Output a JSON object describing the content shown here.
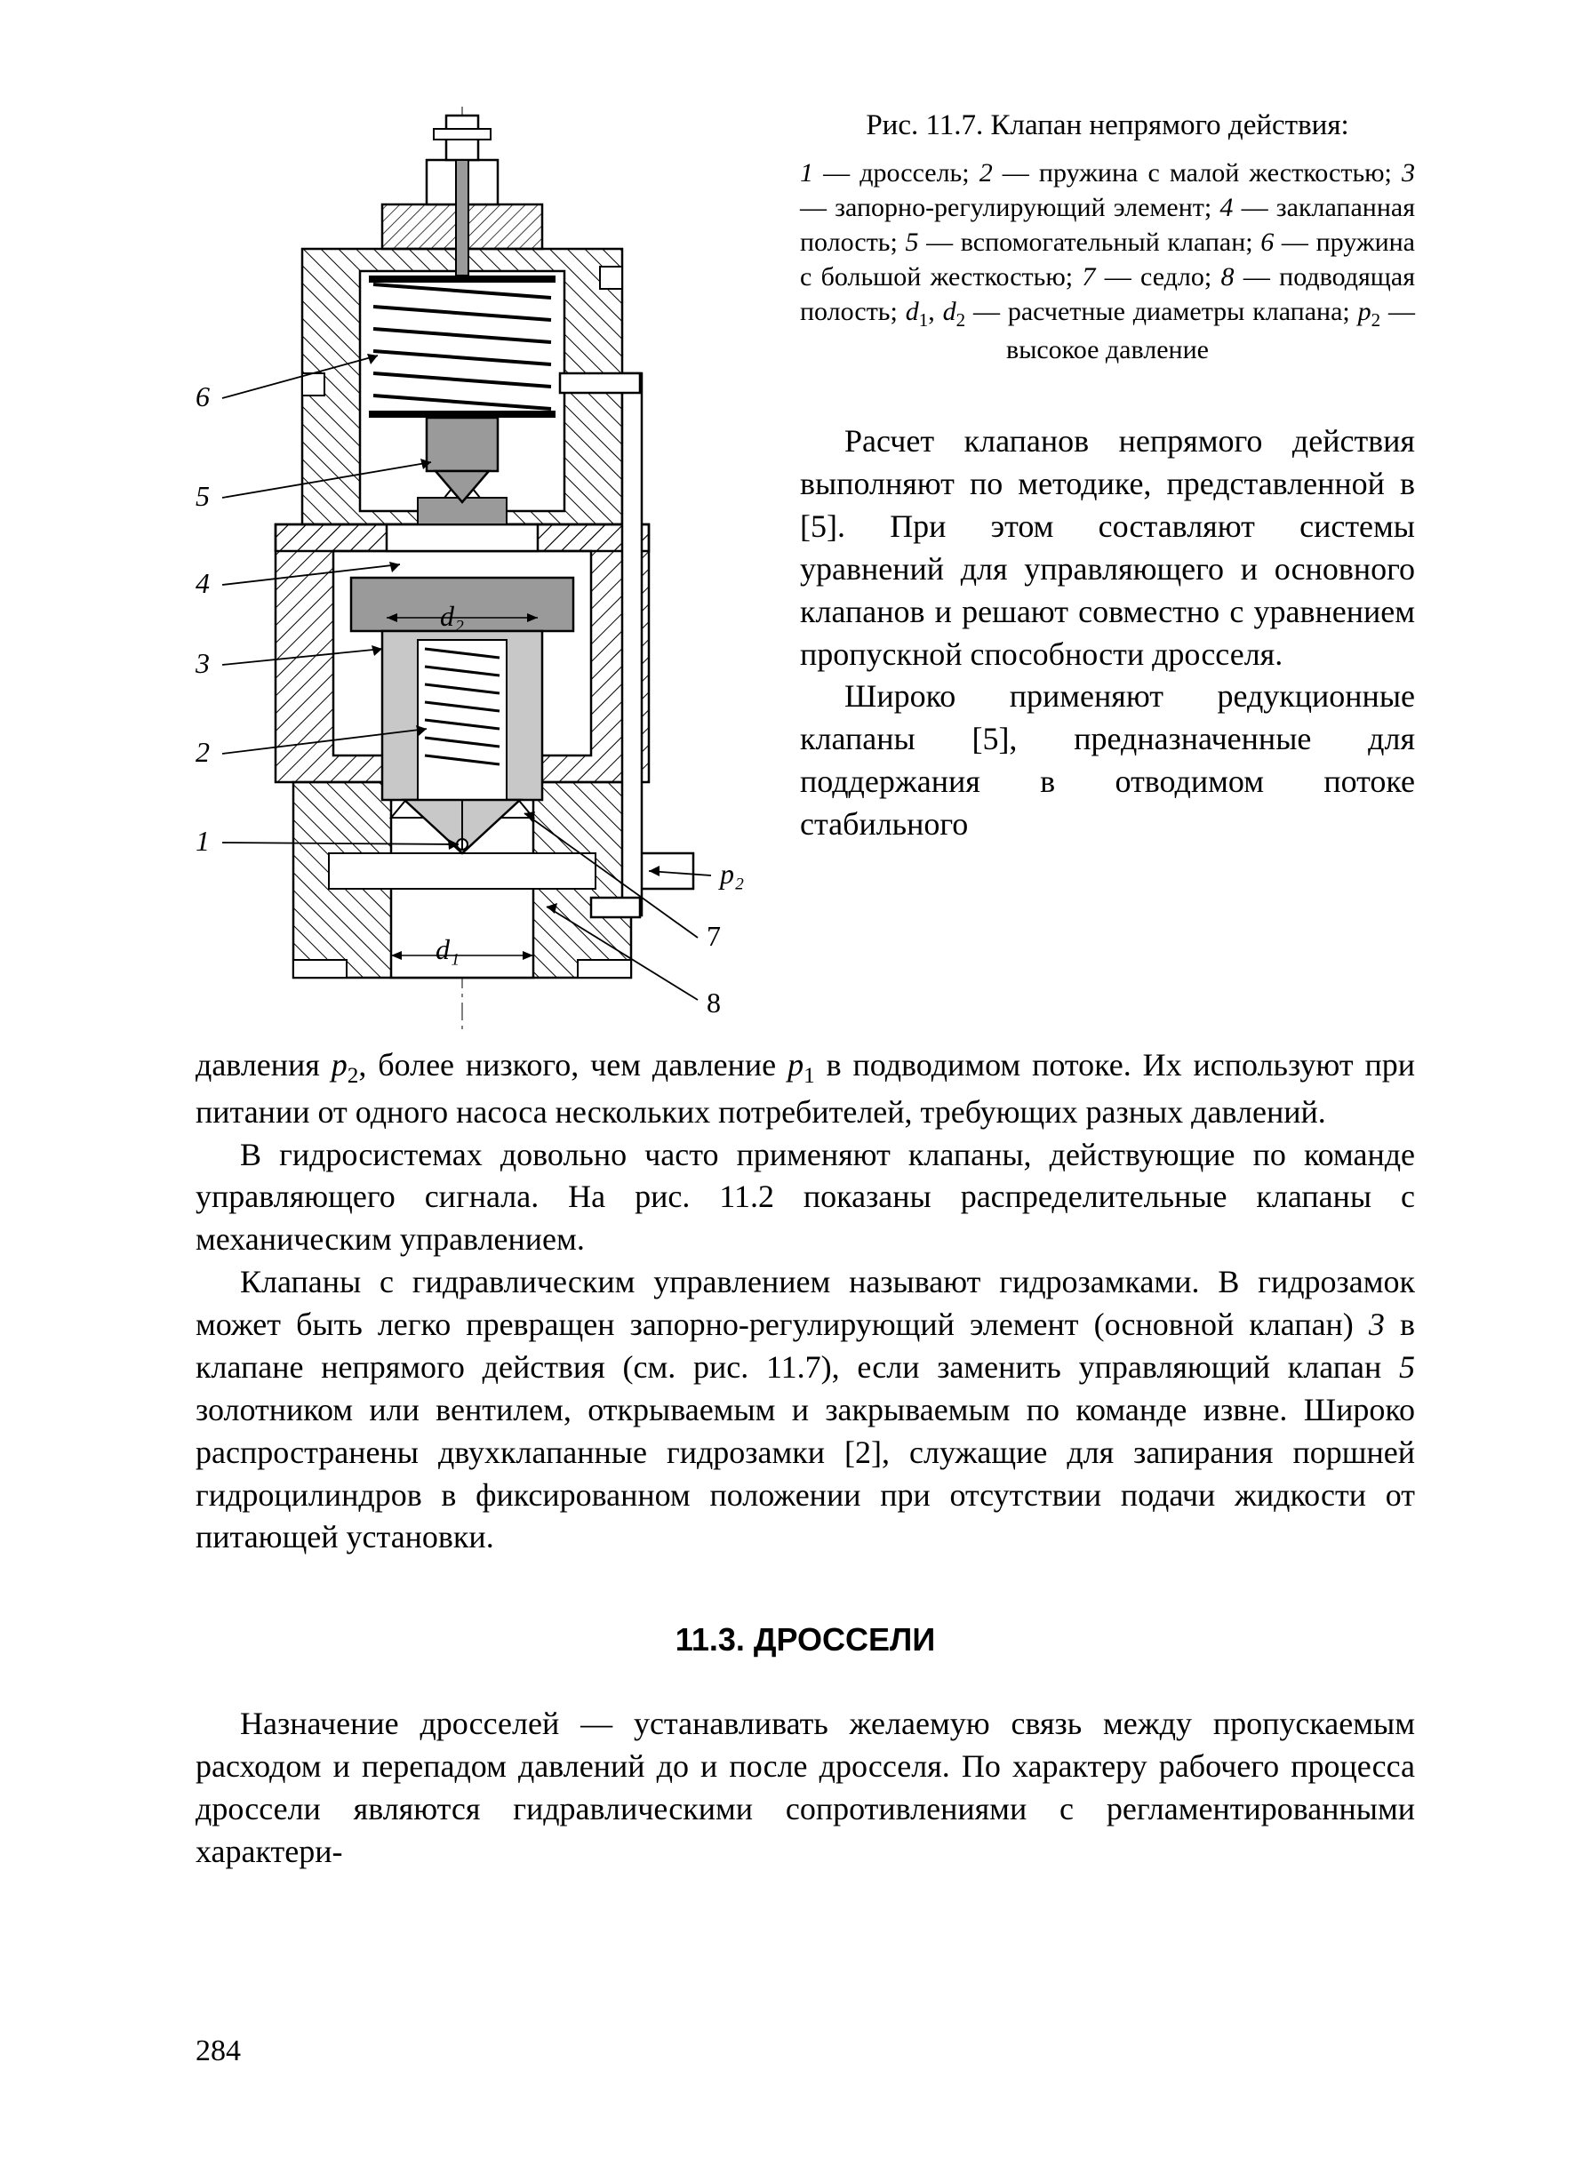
{
  "figure": {
    "title": "Рис. 11.7. Клапан непрямого действия:",
    "legend_html": "<span class='it'>1</span> — дроссель; <span class='it'>2</span> — пружина с малой жесткостью; <span class='it'>3</span> — запорно-регулирующий элемент; <span class='it'>4</span> — заклапанная полость; <span class='it'>5</span> — вспомогательный клапан; <span class='it'>6</span> — пружина с большой жесткостью; <span class='it'>7</span> — седло; <span class='it'>8</span> — подводящая полость; <span class='it'>d</span><span class='sub'>1</span>, <span class='it'>d</span><span class='sub'>2</span> — расчетные диаметры клапана; <span class='it'>p</span><span class='sub'>2</span> — высокое давление",
    "labels": {
      "n1": "1",
      "n2": "2",
      "n3": "3",
      "n4": "4",
      "n5": "5",
      "n6": "6",
      "n7": "7",
      "n8": "8",
      "d1": "d₁",
      "d2": "d₂",
      "p2": "p₂"
    },
    "colors": {
      "stroke": "#000000",
      "hatch": "#000000",
      "metal": "#9a9a9a",
      "metal_light": "#c8c8c8",
      "background": "#ffffff"
    },
    "stroke_width": 2.5
  },
  "paragraphs": {
    "p_top1": "Расчет клапанов непрямого действия выполняют по методике, представленной в [5]. При этом составляют системы уравнений для управляющего и основного клапанов и решают совместно с уравнением пропускной способности дросселя.",
    "p_top2_a": "Широко применяют редукционные клапаны [5], предназначенные для поддержания в отводимом потоке стабильного",
    "p_top2_b": "давления <span class='it'>p</span><span class='sub'>2</span>, более низкого, чем давление <span class='it'>p</span><span class='sub'>1</span> в подводимом потоке. Их используют при питании от одного насоса нескольких потребителей, требующих разных давлений.",
    "p_body1": "В гидросистемах довольно часто применяют клапаны, действующие по команде управляющего сигнала. На рис. 11.2 показаны распределительные клапаны с механическим управлением.",
    "p_body2": "Клапаны с гидравлическим управлением называют гидрозамками. В гидрозамок может быть легко превращен запорно-регулирующий элемент (основной клапан) <span class='it'>3</span> в клапане непрямого действия (см. рис. 11.7), если заменить управляющий клапан <span class='it'>5</span> золотником или вентилем, открываемым и закрываемым по команде извне. Широко распространены двухклапанные гидрозамки [2], служащие для запирания поршней гидроцилиндров в фиксированном положении при отсутствии подачи жидкости от питающей установки."
  },
  "section": {
    "heading": "11.3. ДРОССЕЛИ",
    "p1": "Назначение дросселей — устанавливать желаемую связь между пропускаемым расходом и перепадом давлений до и после дросселя. По характеру рабочего процесса дроссели являются гидравлическими сопротивлениями с регламентированными характери-"
  },
  "page_number": "284"
}
